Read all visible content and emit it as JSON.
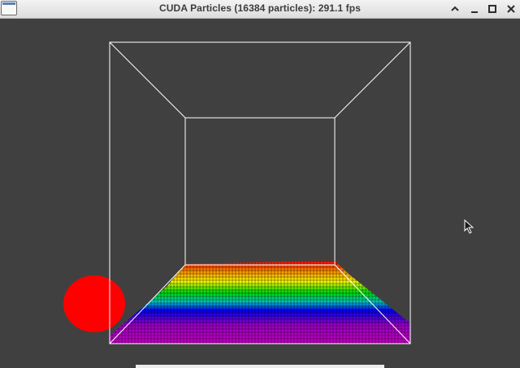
{
  "window": {
    "title": "CUDA Particles (16384 particles): 291.1 fps",
    "icon": "app-window-icon",
    "controls": [
      "shade-icon",
      "minimize-icon",
      "maximize-icon",
      "close-icon"
    ]
  },
  "scene": {
    "background": "#404040",
    "box_color": "#ffffff",
    "sphere_color": "#ff0000",
    "particle_gradient": [
      "#ff0000",
      "#ff8c00",
      "#ffff00",
      "#00e000",
      "#00c8c8",
      "#0000ff",
      "#a000c8",
      "#c800c8"
    ]
  },
  "cursor": "arrow-cursor-icon"
}
